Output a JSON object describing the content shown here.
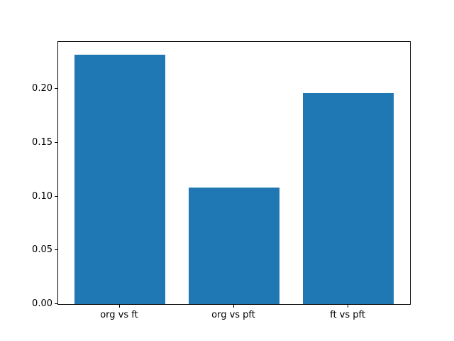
{
  "figure": {
    "background_color": "#ffffff",
    "spine_color": "#000000",
    "tick_color": "#000000",
    "text_color": "#000000"
  },
  "chart_data": {
    "type": "bar",
    "title": "",
    "xlabel": "",
    "ylabel": "",
    "categories": [
      "org vs ft",
      "org vs pft",
      "ft vs pft"
    ],
    "values": [
      0.232,
      0.108,
      0.196
    ],
    "bar_color": "#1f77b4",
    "bar_width_fraction": 0.8,
    "ylim": [
      0,
      0.2436
    ],
    "yticks": [
      0.0,
      0.05,
      0.1,
      0.15,
      0.2
    ],
    "ytick_labels": [
      "0.00",
      "0.05",
      "0.10",
      "0.15",
      "0.20"
    ],
    "grid": false,
    "legend": null
  }
}
